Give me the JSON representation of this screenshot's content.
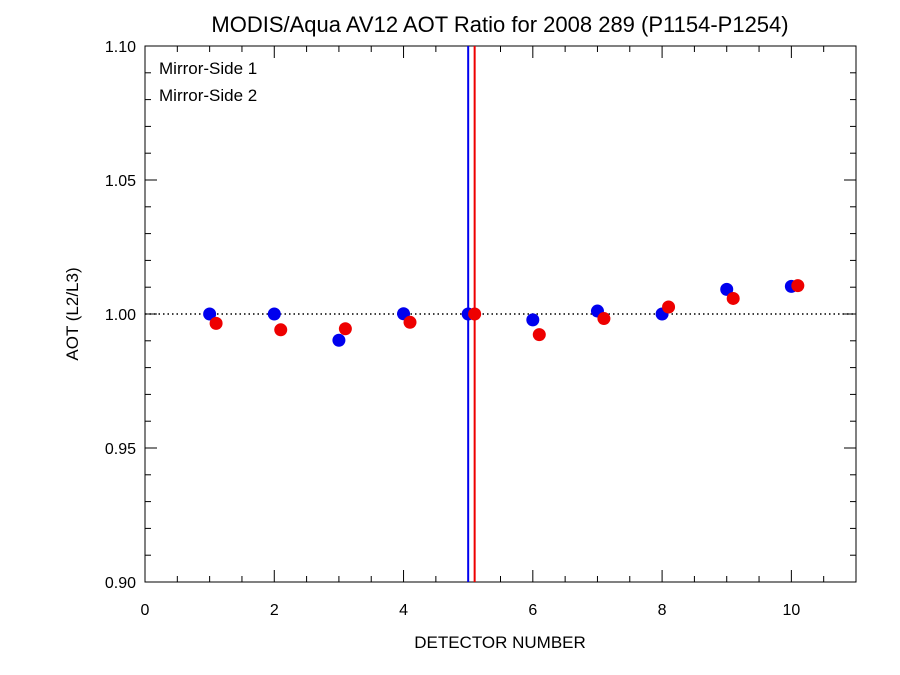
{
  "chart_data": {
    "type": "scatter",
    "title": "MODIS/Aqua AV12 AOT Ratio for 2008 289 (P1154-P1254)",
    "xlabel": "DETECTOR NUMBER",
    "ylabel": "AOT (L2/L3)",
    "xlim": [
      0,
      11
    ],
    "ylim": [
      0.9,
      1.1
    ],
    "x_ticks": [
      0,
      2,
      4,
      6,
      8,
      10
    ],
    "x_tick_labels": [
      "0",
      "2",
      "4",
      "6",
      "8",
      "10"
    ],
    "y_ticks": [
      0.9,
      0.95,
      1.0,
      1.05,
      1.1
    ],
    "y_tick_labels": [
      "0.90",
      "0.95",
      "1.00",
      "1.05",
      "1.10"
    ],
    "reference_line": {
      "y": 1.0,
      "style": "dotted"
    },
    "vertical_lines": [
      {
        "x": 5.0,
        "color": "#0000ee"
      },
      {
        "x": 5.1,
        "color": "#ee0000"
      }
    ],
    "legend_position": "top-left",
    "series": [
      {
        "name": "Mirror-Side 1",
        "color": "#0000ee",
        "x": [
          1,
          2,
          3,
          4,
          5,
          6,
          7,
          8,
          9,
          10
        ],
        "y": [
          1.0,
          1.0,
          0.9902,
          1.0001,
          1.0,
          0.9978,
          1.0011,
          1.0,
          1.0092,
          1.0103
        ]
      },
      {
        "name": "Mirror-Side 2",
        "color": "#ee0000",
        "x": [
          1.1,
          2.1,
          3.1,
          4.1,
          5.1,
          6.1,
          7.1,
          8.1,
          9.1,
          10.1
        ],
        "y": [
          0.9965,
          0.9941,
          0.9945,
          0.9969,
          1.0,
          0.9923,
          0.9983,
          1.0026,
          1.0058,
          1.0106
        ]
      }
    ]
  }
}
